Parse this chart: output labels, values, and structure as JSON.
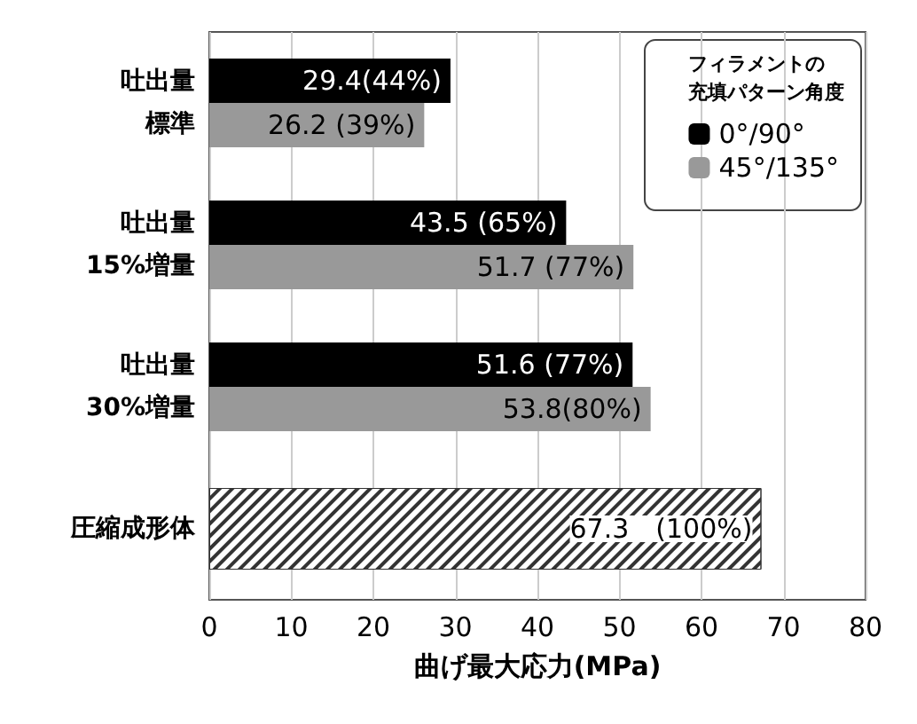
{
  "chart_data": {
    "type": "bar",
    "orientation": "horizontal",
    "categories": [
      "吐出量標準",
      "吐出量15%増量",
      "吐出量30%増量",
      "圧縮成形体"
    ],
    "xlabel": "曲げ最大応力(MPa)",
    "legend_title": "フィラメントの充填パターン角度",
    "legend": "top right",
    "grid": "x",
    "xlim": [
      0,
      80
    ],
    "xticks": [
      0,
      10,
      20,
      30,
      40,
      50,
      60,
      70,
      80
    ],
    "series": [
      {
        "name": "0°/90°",
        "color": "#000000",
        "values": [
          29.4,
          43.5,
          51.6,
          null
        ],
        "value_labels": [
          "29.4(44%)",
          "43.5 (65%)",
          "51.6 (77%)",
          null
        ]
      },
      {
        "name": "45°/135°",
        "color": "#999999",
        "values": [
          26.2,
          51.7,
          53.8,
          null
        ],
        "value_labels": [
          "26.2 (39%)",
          "51.7 (77%)",
          "53.8(80%)",
          null
        ]
      },
      {
        "type": "bar",
        "color": "#333333",
        "values": [
          null,
          null,
          null,
          67.3
        ],
        "value_labels": [
          null,
          null,
          null,
          "67.3　(100%)"
        ]
      }
    ]
  }
}
